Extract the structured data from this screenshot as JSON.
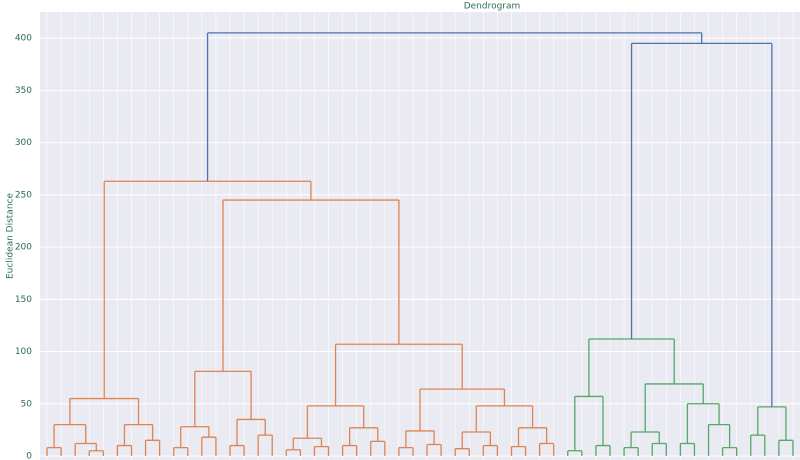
{
  "chart_data": {
    "type": "dendrogram",
    "title": "Dendrogram",
    "y_label": "Euclidean Distance",
    "ylim": [
      0,
      425
    ],
    "yticks": [
      0,
      50,
      100,
      150,
      200,
      250,
      300,
      350,
      400
    ],
    "grid": true,
    "tree": {
      "height": 405,
      "color": "#4c72b0",
      "children": [
        {
          "height": 263,
          "color": "#dd8452",
          "children": [
            {
              "height": 55,
              "children": [
                {
                  "height": 30,
                  "children": [
                    {
                      "height": 8,
                      "children": [
                        {
                          "height": 0
                        },
                        {
                          "height": 0
                        }
                      ]
                    },
                    {
                      "height": 12,
                      "children": [
                        {
                          "height": 0
                        },
                        {
                          "height": 5,
                          "children": [
                            {
                              "height": 0
                            },
                            {
                              "height": 0
                            }
                          ]
                        }
                      ]
                    }
                  ]
                },
                {
                  "height": 30,
                  "children": [
                    {
                      "height": 10,
                      "children": [
                        {
                          "height": 0
                        },
                        {
                          "height": 0
                        }
                      ]
                    },
                    {
                      "height": 15,
                      "children": [
                        {
                          "height": 0
                        },
                        {
                          "height": 0
                        }
                      ]
                    }
                  ]
                }
              ]
            },
            {
              "height": 245,
              "children": [
                {
                  "height": 81,
                  "children": [
                    {
                      "height": 28,
                      "children": [
                        {
                          "height": 8,
                          "children": [
                            {
                              "height": 0
                            },
                            {
                              "height": 0
                            }
                          ]
                        },
                        {
                          "height": 18,
                          "children": [
                            {
                              "height": 0
                            },
                            {
                              "height": 0
                            }
                          ]
                        }
                      ]
                    },
                    {
                      "height": 35,
                      "children": [
                        {
                          "height": 10,
                          "children": [
                            {
                              "height": 0
                            },
                            {
                              "height": 0
                            }
                          ]
                        },
                        {
                          "height": 20,
                          "children": [
                            {
                              "height": 0
                            },
                            {
                              "height": 0
                            }
                          ]
                        }
                      ]
                    }
                  ]
                },
                {
                  "height": 107,
                  "children": [
                    {
                      "height": 48,
                      "children": [
                        {
                          "height": 17,
                          "children": [
                            {
                              "height": 6,
                              "children": [
                                {
                                  "height": 0
                                },
                                {
                                  "height": 0
                                }
                              ]
                            },
                            {
                              "height": 9,
                              "children": [
                                {
                                  "height": 0
                                },
                                {
                                  "height": 0
                                }
                              ]
                            }
                          ]
                        },
                        {
                          "height": 27,
                          "children": [
                            {
                              "height": 10,
                              "children": [
                                {
                                  "height": 0
                                },
                                {
                                  "height": 0
                                }
                              ]
                            },
                            {
                              "height": 14,
                              "children": [
                                {
                                  "height": 0
                                },
                                {
                                  "height": 0
                                }
                              ]
                            }
                          ]
                        }
                      ]
                    },
                    {
                      "height": 64,
                      "children": [
                        {
                          "height": 24,
                          "children": [
                            {
                              "height": 8,
                              "children": [
                                {
                                  "height": 0
                                },
                                {
                                  "height": 0
                                }
                              ]
                            },
                            {
                              "height": 11,
                              "children": [
                                {
                                  "height": 0
                                },
                                {
                                  "height": 0
                                }
                              ]
                            }
                          ]
                        },
                        {
                          "height": 48,
                          "children": [
                            {
                              "height": 23,
                              "children": [
                                {
                                  "height": 7,
                                  "children": [
                                    {
                                      "height": 0
                                    },
                                    {
                                      "height": 0
                                    }
                                  ]
                                },
                                {
                                  "height": 10,
                                  "children": [
                                    {
                                      "height": 0
                                    },
                                    {
                                      "height": 0
                                    }
                                  ]
                                }
                              ]
                            },
                            {
                              "height": 27,
                              "children": [
                                {
                                  "height": 9,
                                  "children": [
                                    {
                                      "height": 0
                                    },
                                    {
                                      "height": 0
                                    }
                                  ]
                                },
                                {
                                  "height": 12,
                                  "children": [
                                    {
                                      "height": 0
                                    },
                                    {
                                      "height": 0
                                    }
                                  ]
                                }
                              ]
                            }
                          ]
                        }
                      ]
                    }
                  ]
                }
              ]
            }
          ]
        },
        {
          "height": 395,
          "children": [
            {
              "height": 112,
              "color": "#55a868",
              "children": [
                {
                  "height": 57,
                  "children": [
                    {
                      "height": 5,
                      "children": [
                        {
                          "height": 0
                        },
                        {
                          "height": 0
                        }
                      ]
                    },
                    {
                      "height": 10,
                      "children": [
                        {
                          "height": 0
                        },
                        {
                          "height": 0
                        }
                      ]
                    }
                  ]
                },
                {
                  "height": 69,
                  "children": [
                    {
                      "height": 23,
                      "children": [
                        {
                          "height": 8,
                          "children": [
                            {
                              "height": 0
                            },
                            {
                              "height": 0
                            }
                          ]
                        },
                        {
                          "height": 12,
                          "children": [
                            {
                              "height": 0
                            },
                            {
                              "height": 0
                            }
                          ]
                        }
                      ]
                    },
                    {
                      "height": 50,
                      "children": [
                        {
                          "height": 12,
                          "children": [
                            {
                              "height": 0
                            },
                            {
                              "height": 0
                            }
                          ]
                        },
                        {
                          "height": 30,
                          "children": [
                            {
                              "height": 0
                            },
                            {
                              "height": 8,
                              "children": [
                                {
                                  "height": 0
                                },
                                {
                                  "height": 0
                                }
                              ]
                            }
                          ]
                        }
                      ]
                    }
                  ]
                }
              ]
            },
            {
              "height": 47,
              "color": "#55a868",
              "children": [
                {
                  "height": 20,
                  "children": [
                    {
                      "height": 0
                    },
                    {
                      "height": 0
                    }
                  ]
                },
                {
                  "height": 15,
                  "children": [
                    {
                      "height": 0
                    },
                    {
                      "height": 0
                    }
                  ]
                }
              ]
            }
          ]
        }
      ]
    }
  }
}
